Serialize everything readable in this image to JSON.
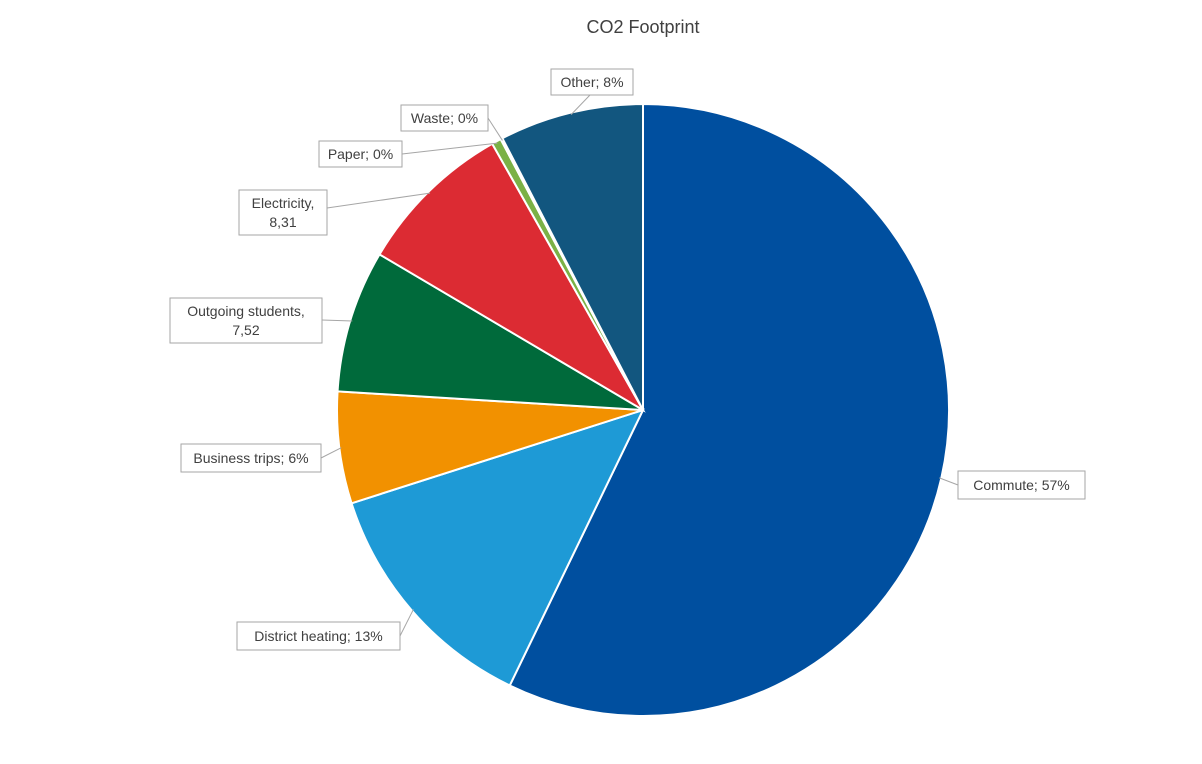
{
  "chart_data": {
    "type": "pie",
    "title": "CO2 Footprint",
    "start_angle_deg": 0,
    "direction": "clockwise",
    "slices": [
      {
        "name": "Commute",
        "value": 57.17,
        "label_line1": "Commute; 57%",
        "label_line2": "",
        "color": "#004f9f"
      },
      {
        "name": "District heating",
        "value": 12.9,
        "label_line1": "District heating; 13%",
        "label_line2": "",
        "color": "#1e9ad6"
      },
      {
        "name": "Business trips",
        "value": 5.9,
        "label_line1": "Business trips; 6%",
        "label_line2": "",
        "color": "#f29100"
      },
      {
        "name": "Outgoing students",
        "value": 7.52,
        "label_line1": "Outgoing students,",
        "label_line2": "7,52",
        "color": "#006a3b"
      },
      {
        "name": "Electricity",
        "value": 8.31,
        "label_line1": "Electricity,",
        "label_line2": "8,31",
        "color": "#dc2b33"
      },
      {
        "name": "Paper",
        "value": 0.5,
        "label_line1": "Paper; 0%",
        "label_line2": "",
        "color": "#7bb146"
      },
      {
        "name": "Waste",
        "value": 0.1,
        "label_line1": "Waste; 0%",
        "label_line2": "",
        "color": "#c8c8c8"
      },
      {
        "name": "Other",
        "value": 7.6,
        "label_line1": "Other; 8%",
        "label_line2": "",
        "color": "#12567f"
      }
    ],
    "legend": "none"
  }
}
